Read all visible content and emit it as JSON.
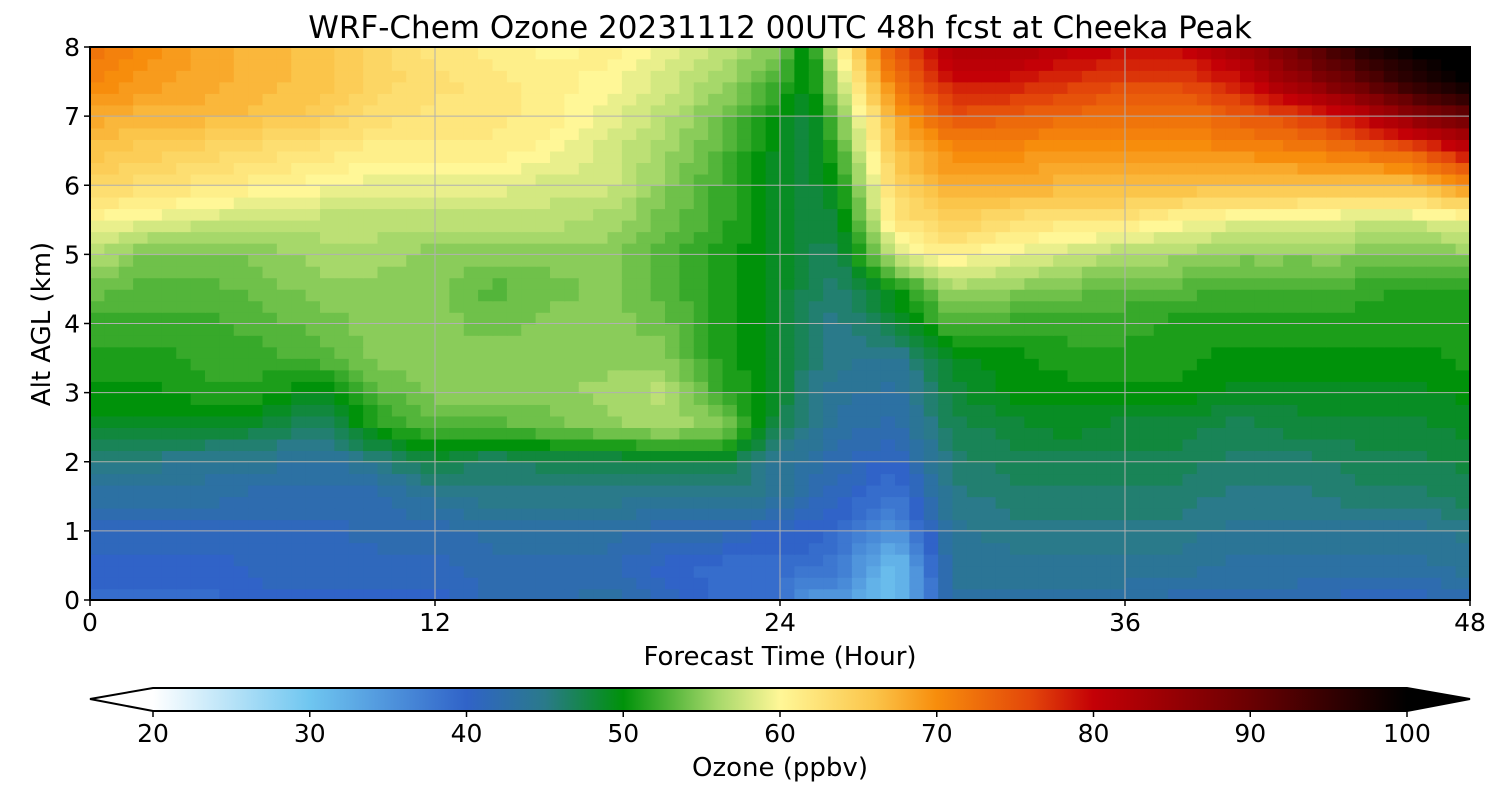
{
  "chart_data": {
    "type": "heatmap",
    "title": "WRF-Chem Ozone  20231112 00UTC 48h fcst at Cheeka Peak",
    "xlabel": "Forecast Time (Hour)",
    "ylabel": "Alt AGL (km)",
    "xlim": [
      0,
      48
    ],
    "ylim": [
      0,
      8
    ],
    "xticks": [
      0,
      12,
      24,
      36,
      48
    ],
    "yticks": [
      0,
      1,
      2,
      3,
      4,
      5,
      6,
      7,
      8
    ],
    "grid": true,
    "x_hours": [
      0,
      2,
      4,
      6,
      8,
      10,
      12,
      14,
      16,
      18,
      20,
      22,
      24,
      25,
      26,
      28,
      30,
      32,
      34,
      36,
      38,
      40,
      42,
      44,
      46,
      48
    ],
    "y_km": [
      0,
      0.5,
      1,
      1.5,
      2,
      2.5,
      3,
      3.5,
      4,
      4.5,
      5,
      5.5,
      6,
      6.5,
      7,
      7.5,
      8
    ],
    "z_ppbv": [
      [
        39,
        39,
        39,
        40,
        40,
        40,
        40,
        42,
        42,
        43,
        41,
        39,
        39,
        34,
        35,
        30,
        43,
        43,
        43,
        43,
        42,
        42,
        42,
        41,
        41,
        42
      ],
      [
        40,
        40,
        40,
        41,
        41,
        41,
        41,
        42,
        42,
        42,
        40,
        39,
        39,
        39,
        38,
        30,
        44,
        44,
        44,
        44,
        44,
        43,
        43,
        43,
        43,
        44
      ],
      [
        41,
        41,
        41,
        41,
        41,
        42,
        42,
        43,
        43,
        43,
        42,
        42,
        40,
        40,
        39,
        35,
        44,
        45,
        45,
        45,
        45,
        44,
        44,
        44,
        44,
        45
      ],
      [
        43,
        43,
        43,
        42,
        42,
        42,
        44,
        45,
        45,
        45,
        44,
        45,
        44,
        42,
        41,
        38,
        45,
        46,
        46,
        46,
        46,
        45,
        45,
        46,
        46,
        47
      ],
      [
        45,
        45,
        44,
        44,
        43,
        45,
        48,
        46,
        47,
        47,
        48,
        48,
        44,
        43,
        42,
        40,
        46,
        47,
        47,
        47,
        47,
        46,
        46,
        47,
        47,
        48
      ],
      [
        49,
        49,
        49,
        48,
        46,
        51,
        53,
        53,
        54,
        55,
        56,
        55,
        47,
        45,
        43,
        42,
        47,
        48,
        49,
        48,
        48,
        47,
        48,
        48,
        48,
        49
      ],
      [
        50,
        50,
        51,
        51,
        49,
        53,
        55,
        55,
        55,
        56,
        57,
        52,
        49,
        45,
        44,
        43,
        48,
        50,
        50,
        50,
        50,
        49,
        49,
        49,
        49,
        50
      ],
      [
        51,
        51,
        52,
        52,
        53,
        55,
        55,
        55,
        55,
        55,
        55,
        51,
        49,
        46,
        45,
        44,
        49,
        50,
        51,
        51,
        51,
        50,
        50,
        50,
        50,
        51
      ],
      [
        52,
        52,
        52,
        53,
        54,
        55,
        55,
        54,
        55,
        55,
        54,
        51,
        49,
        46,
        45,
        48,
        53,
        52,
        52,
        52,
        51,
        51,
        51,
        51,
        51,
        51
      ],
      [
        54,
        53,
        53,
        54,
        55,
        55,
        55,
        53,
        54,
        55,
        53,
        51,
        49,
        47,
        46,
        50,
        56,
        55,
        54,
        53,
        53,
        52,
        52,
        52,
        51,
        51
      ],
      [
        57,
        54,
        54,
        55,
        56,
        56,
        55,
        55,
        55,
        55,
        53,
        51,
        49,
        47,
        47,
        58,
        61,
        59,
        58,
        56,
        56,
        55,
        55,
        55,
        54,
        55
      ],
      [
        60,
        59,
        58,
        57,
        57,
        57,
        57,
        57,
        57,
        56,
        54,
        52,
        49,
        48,
        48,
        62,
        65,
        63,
        62,
        62,
        60,
        59,
        59,
        58,
        58,
        59
      ],
      [
        64,
        63,
        62,
        61,
        60,
        59,
        59,
        59,
        58,
        58,
        55,
        52,
        49,
        48,
        50,
        64,
        68,
        68,
        67,
        67,
        67,
        66,
        66,
        66,
        66,
        70
      ],
      [
        66,
        65,
        64,
        63,
        62,
        61,
        61,
        61,
        60,
        58,
        56,
        53,
        49,
        48,
        52,
        66,
        70,
        70,
        69,
        69,
        70,
        70,
        71,
        72,
        74,
        80
      ],
      [
        68,
        67,
        67,
        66,
        65,
        63,
        62,
        62,
        61,
        59,
        57,
        54,
        50,
        48,
        54,
        68,
        75,
        74,
        73,
        72,
        72,
        74,
        76,
        80,
        86,
        90
      ],
      [
        71,
        69,
        68,
        67,
        66,
        64,
        63,
        62,
        61,
        60,
        58,
        56,
        52,
        49,
        57,
        72,
        79,
        79,
        77,
        76,
        76,
        79,
        85,
        90,
        96,
        100
      ],
      [
        72,
        70,
        68,
        67,
        66,
        64,
        62,
        61,
        60,
        61,
        59,
        57,
        55,
        49,
        60,
        75,
        82,
        83,
        81,
        80,
        80,
        84,
        90,
        96,
        100,
        102
      ]
    ]
  },
  "colorbar": {
    "label": "Ozone  (ppbv)",
    "min": 20,
    "max": 100,
    "ticks": [
      "20",
      "30",
      "40",
      "50",
      "60",
      "70",
      "80",
      "90",
      "100"
    ],
    "extend": "both"
  },
  "colors": {
    "stops": [
      [
        20,
        "#ffffff"
      ],
      [
        30,
        "#6fc6f0"
      ],
      [
        40,
        "#3063c8"
      ],
      [
        45,
        "#2a7a8a"
      ],
      [
        50,
        "#00920a"
      ],
      [
        56,
        "#a6d86a"
      ],
      [
        60,
        "#fff797"
      ],
      [
        66,
        "#fbc54a"
      ],
      [
        70,
        "#f78d0c"
      ],
      [
        76,
        "#e3460a"
      ],
      [
        80,
        "#c40006"
      ],
      [
        90,
        "#6a0002"
      ],
      [
        100,
        "#000000"
      ]
    ],
    "grid": "#b0b0b0"
  }
}
